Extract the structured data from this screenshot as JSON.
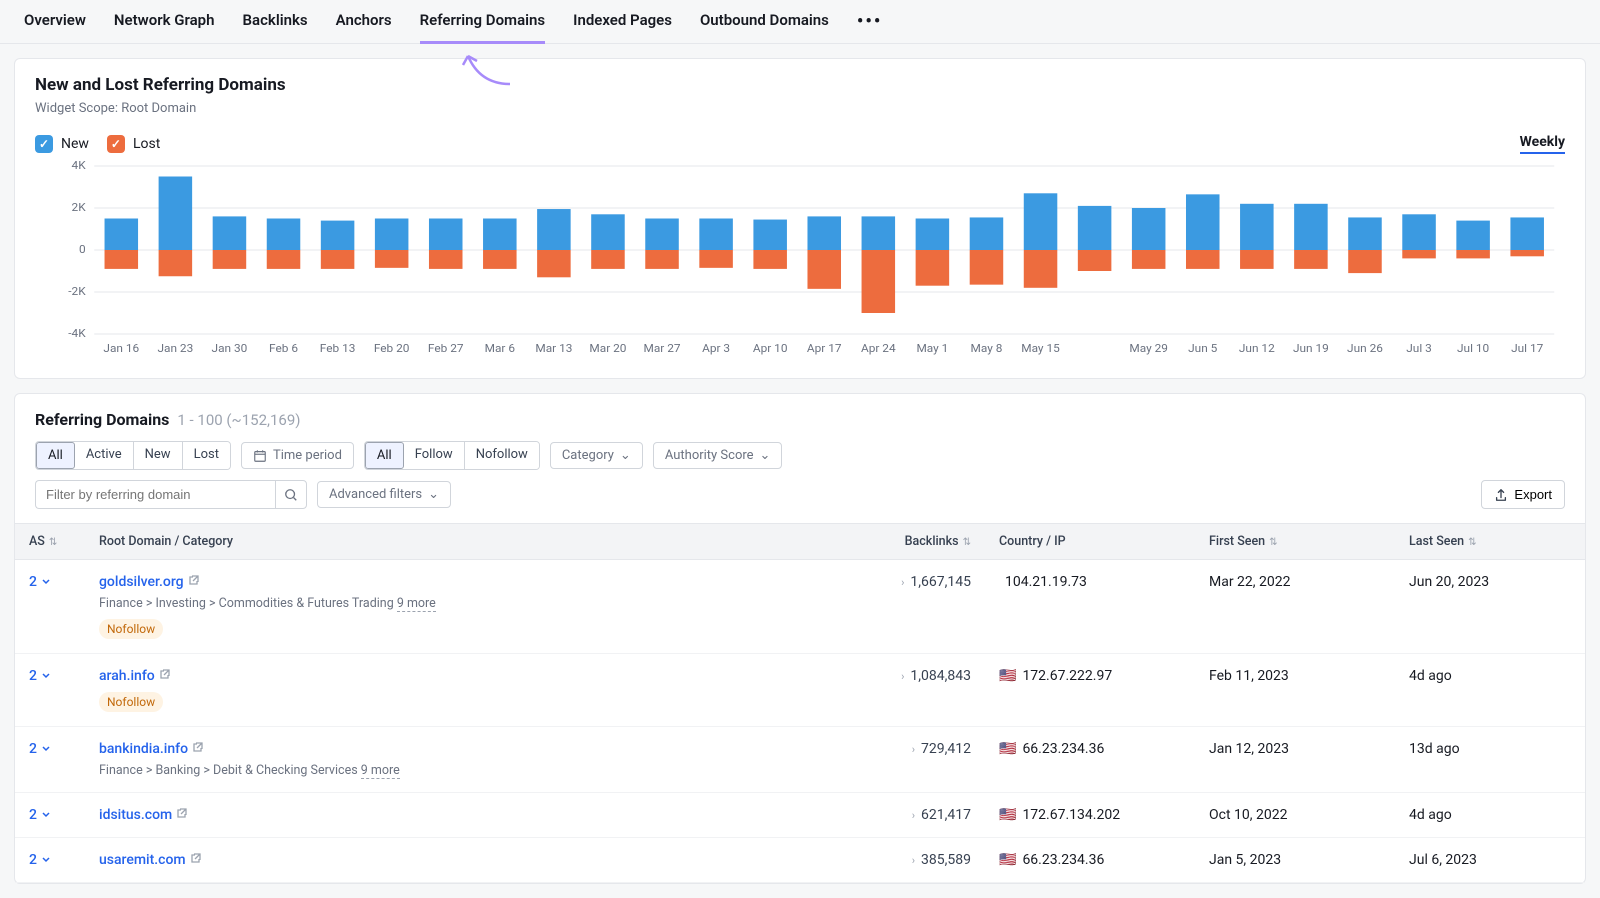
{
  "tabs": {
    "items": [
      "Overview",
      "Network Graph",
      "Backlinks",
      "Anchors",
      "Referring Domains",
      "Indexed Pages",
      "Outbound Domains"
    ],
    "active_index": 4
  },
  "chart_card": {
    "title": "New and Lost Referring Domains",
    "subtitle": "Widget Scope: Root Domain",
    "legend": {
      "new_label": "New",
      "lost_label": "Lost"
    },
    "period_label": "Weekly",
    "chart": {
      "type": "bar-diverging",
      "ylim": [
        -4000,
        4000
      ],
      "yticks": [
        4000,
        2000,
        0,
        -2000,
        -4000
      ],
      "ytick_labels": [
        "4K",
        "2K",
        "0",
        "-2K",
        "-4K"
      ],
      "new_color": "#3b9ae1",
      "lost_color": "#ed6c3e",
      "grid_color": "#e5e7eb",
      "axis_font_size": 11,
      "categories": [
        "Jan 16",
        "Jan 23",
        "Jan 30",
        "Feb 6",
        "Feb 13",
        "Feb 20",
        "Feb 27",
        "Mar 6",
        "Mar 13",
        "Mar 20",
        "Mar 27",
        "Apr 3",
        "Apr 10",
        "Apr 17",
        "Apr 24",
        "May 1",
        "May 8",
        "May 15",
        "",
        "May 29",
        "Jun 5",
        "Jun 12",
        "Jun 19",
        "Jun 26",
        "Jul 3",
        "Jul 10",
        "Jul 17"
      ],
      "new_values": [
        1500,
        3500,
        1600,
        1500,
        1400,
        1500,
        1500,
        1500,
        1950,
        1700,
        1500,
        1500,
        1450,
        1600,
        1600,
        1500,
        1550,
        2700,
        2100,
        2000,
        2650,
        2200,
        2200,
        1550,
        1700,
        1400,
        1550
      ],
      "lost_values": [
        -900,
        -1250,
        -900,
        -900,
        -900,
        -850,
        -900,
        -900,
        -1300,
        -900,
        -900,
        -850,
        -900,
        -1850,
        -3000,
        -1700,
        -1650,
        -1800,
        -1000,
        -900,
        -900,
        -900,
        -900,
        -1100,
        -400,
        -400,
        -300
      ]
    }
  },
  "table_card": {
    "title": "Referring Domains",
    "range_text": "1 - 100 (~152,169)",
    "filters": {
      "group1": [
        "All",
        "Active",
        "New",
        "Lost"
      ],
      "group1_selected": 0,
      "timeperiod_label": "Time period",
      "group2": [
        "All",
        "Follow",
        "Nofollow"
      ],
      "group2_selected": 0,
      "category_label": "Category",
      "authority_label": "Authority Score",
      "search_placeholder": "Filter by referring domain",
      "adv_label": "Advanced filters",
      "export_label": "Export"
    },
    "columns": {
      "as": "AS",
      "domain": "Root Domain / Category",
      "backlinks": "Backlinks",
      "country": "Country / IP",
      "first": "First Seen",
      "last": "Last Seen"
    },
    "rows": [
      {
        "as": "2",
        "domain": "goldsilver.org",
        "category": "Finance > Investing > Commodities & Futures Trading",
        "more": "9 more",
        "nofollow": true,
        "backlinks": "1,667,145",
        "flag": "",
        "ip": "104.21.19.73",
        "first": "Mar 22, 2022",
        "last": "Jun 20, 2023"
      },
      {
        "as": "2",
        "domain": "arah.info",
        "category": "",
        "more": "",
        "nofollow": true,
        "backlinks": "1,084,843",
        "flag": "🇺🇸",
        "ip": "172.67.222.97",
        "first": "Feb 11, 2023",
        "last": "4d ago"
      },
      {
        "as": "2",
        "domain": "bankindia.info",
        "category": "Finance > Banking > Debit & Checking Services",
        "more": "9 more",
        "nofollow": false,
        "backlinks": "729,412",
        "flag": "🇺🇸",
        "ip": "66.23.234.36",
        "first": "Jan 12, 2023",
        "last": "13d ago"
      },
      {
        "as": "2",
        "domain": "idsitus.com",
        "category": "",
        "more": "",
        "nofollow": false,
        "backlinks": "621,417",
        "flag": "🇺🇸",
        "ip": "172.67.134.202",
        "first": "Oct 10, 2022",
        "last": "4d ago"
      },
      {
        "as": "2",
        "domain": "usaremit.com",
        "category": "",
        "more": "",
        "nofollow": false,
        "backlinks": "385,589",
        "flag": "🇺🇸",
        "ip": "66.23.234.36",
        "first": "Jan 5, 2023",
        "last": "Jul 6, 2023"
      }
    ]
  }
}
